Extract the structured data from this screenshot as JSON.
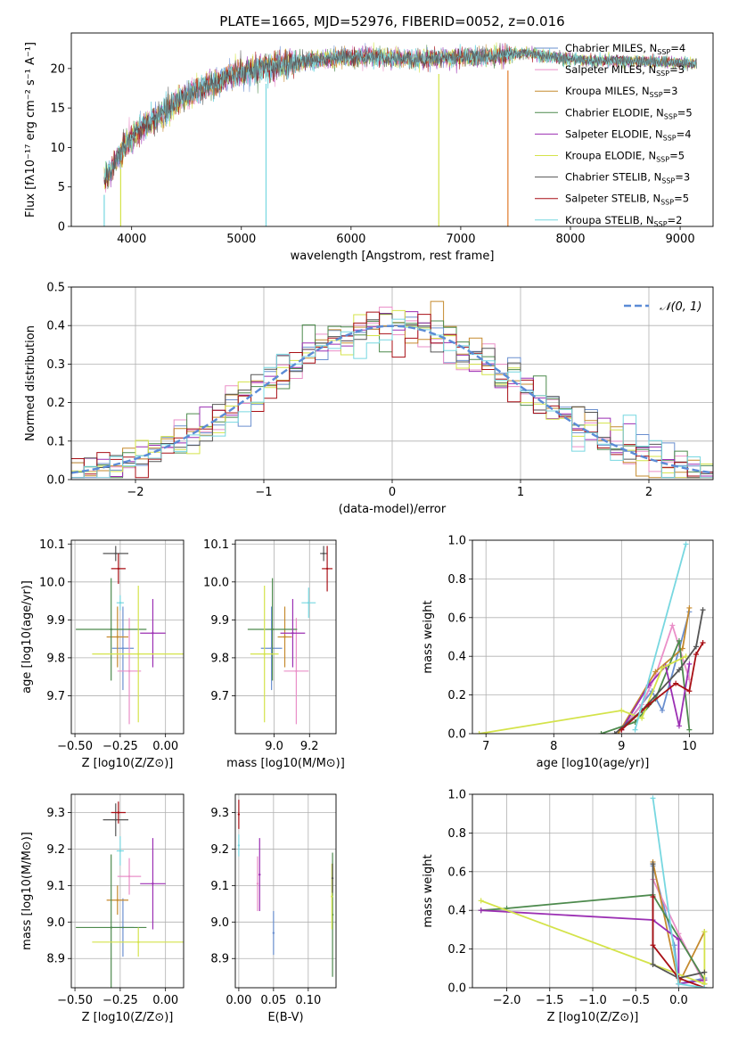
{
  "figure_title": "PLATE=1665, MJD=52976, FIBERID=0052, z=0.016",
  "model_colors": [
    "#6a8fcf",
    "#ea8fc8",
    "#c58a2e",
    "#4d8a4d",
    "#9b2fb3",
    "#d4e34a",
    "#555555",
    "#a80f15",
    "#77d7e0"
  ],
  "chart_data": [
    {
      "id": "spectrum",
      "type": "line",
      "xlabel": "wavelength [Angstrom, rest frame]",
      "ylabel": "Flux [fλ10⁻¹⁷ erg cm⁻² s⁻¹ A⁻¹]",
      "xlim": [
        3450,
        9300
      ],
      "ylim": [
        0,
        24.5
      ],
      "xticks": [
        4000,
        5000,
        6000,
        7000,
        8000,
        9000
      ],
      "yticks": [
        0,
        5,
        10,
        15,
        20
      ],
      "grid": false,
      "legend_placement": "top-right",
      "legend": [
        "Chabrier MILES, N_SSP=4",
        "Salpeter MILES, N_SSP=3",
        "Kroupa MILES, N_SSP=3",
        "Chabrier ELODIE, N_SSP=5",
        "Salpeter ELODIE, N_SSP=4",
        "Kroupa ELODIE, N_SSP=5",
        "Chabrier STELIB, N_SSP=3",
        "Salpeter STELIB, N_SSP=5",
        "Kroupa STELIB, N_SSP=2"
      ],
      "continuum": {
        "x": [
          3750,
          3850,
          3950,
          4050,
          4150,
          4250,
          4350,
          4500,
          4650,
          4800,
          5000,
          5200,
          5400,
          5600,
          5800,
          6000,
          6200,
          6400,
          6600,
          6800,
          7000,
          7200,
          7400,
          7600,
          7800,
          8000,
          8200,
          8400,
          8600,
          8800,
          9000,
          9200
        ],
        "y": [
          6,
          8,
          10.5,
          12,
          13,
          14,
          15,
          16.5,
          17.5,
          18.5,
          19.5,
          20,
          20.5,
          21,
          21.3,
          21.5,
          21.5,
          21.3,
          21.2,
          21.3,
          21.5,
          21.5,
          21.7,
          22,
          21.5,
          21.2,
          21,
          21,
          20.9,
          20.8,
          20.7,
          20.6
        ]
      },
      "dips": [
        {
          "x": 5225,
          "y": 0
        },
        {
          "x": 6800,
          "y": 0
        },
        {
          "x": 7430,
          "y": 0
        },
        {
          "x": 3900,
          "y": 0
        },
        {
          "x": 3750,
          "y": 0
        }
      ]
    },
    {
      "id": "residuals",
      "type": "histogram",
      "xlabel": "(data-model)/error",
      "ylabel": "Normed distribution",
      "xlim": [
        -2.5,
        2.5
      ],
      "ylim": [
        0,
        0.5
      ],
      "xticks": [
        -2,
        -1,
        0,
        1,
        2
      ],
      "yticks": [
        0.0,
        0.1,
        0.2,
        0.3,
        0.4,
        0.5
      ],
      "grid": true,
      "legend_placement": "top-right",
      "legend": [
        "N(0,1)"
      ],
      "bin_width": 0.1
    },
    {
      "id": "age_vs_Z",
      "type": "errorbar",
      "xlabel": "Z [log10(Z/Z⊙)]",
      "ylabel": "age [log10(age/yr)]",
      "xlim": [
        -0.52,
        0.1
      ],
      "ylim": [
        9.6,
        10.11
      ],
      "xticks": [
        -0.5,
        -0.25,
        0.0
      ],
      "yticks": [
        9.7,
        9.8,
        9.9,
        10.0,
        10.1
      ],
      "grid": true,
      "points": [
        {
          "c": 0,
          "x": -0.235,
          "xe": 0.06,
          "y": 9.825,
          "ye": 0.11
        },
        {
          "c": 1,
          "x": -0.2,
          "xe": 0.065,
          "y": 9.765,
          "ye": 0.14
        },
        {
          "c": 2,
          "x": -0.265,
          "xe": 0.06,
          "y": 9.855,
          "ye": 0.08
        },
        {
          "c": 3,
          "x": -0.3,
          "xe": 0.195,
          "y": 9.875,
          "ye": 0.135
        },
        {
          "c": 4,
          "x": -0.07,
          "xe": 0.07,
          "y": 9.865,
          "ye": 0.09
        },
        {
          "c": 5,
          "x": -0.15,
          "xe": 0.255,
          "y": 9.81,
          "ye": 0.18
        },
        {
          "c": 6,
          "x": -0.275,
          "xe": 0.07,
          "y": 10.075,
          "ye": 0.02
        },
        {
          "c": 7,
          "x": -0.26,
          "xe": 0.04,
          "y": 10.035,
          "ye": 0.04
        },
        {
          "c": 8,
          "x": -0.25,
          "xe": 0.02,
          "y": 9.945,
          "ye": 0.02
        }
      ]
    },
    {
      "id": "age_vs_mass",
      "type": "errorbar",
      "xlabel": "mass [log10(M/M⊙)]",
      "ylabel": "",
      "xlim": [
        8.78,
        9.35
      ],
      "ylim": [
        9.6,
        10.11
      ],
      "xticks": [
        9.0,
        9.2
      ],
      "yticks": [
        9.7,
        9.8,
        9.9,
        10.0,
        10.1
      ],
      "grid": true,
      "points": [
        {
          "c": 0,
          "x": 8.985,
          "xe": 0.06,
          "y": 9.825,
          "ye": 0.11
        },
        {
          "c": 1,
          "x": 9.125,
          "xe": 0.07,
          "y": 9.765,
          "ye": 0.14
        },
        {
          "c": 2,
          "x": 9.06,
          "xe": 0.04,
          "y": 9.855,
          "ye": 0.08
        },
        {
          "c": 3,
          "x": 8.99,
          "xe": 0.14,
          "y": 9.875,
          "ye": 0.135
        },
        {
          "c": 4,
          "x": 9.105,
          "xe": 0.07,
          "y": 9.865,
          "ye": 0.09
        },
        {
          "c": 5,
          "x": 8.945,
          "xe": 0.08,
          "y": 9.81,
          "ye": 0.18
        },
        {
          "c": 6,
          "x": 9.28,
          "xe": 0.02,
          "y": 10.075,
          "ye": 0.02
        },
        {
          "c": 7,
          "x": 9.3,
          "xe": 0.03,
          "y": 10.035,
          "ye": 0.06
        },
        {
          "c": 8,
          "x": 9.195,
          "xe": 0.04,
          "y": 9.945,
          "ye": 0.04
        }
      ]
    },
    {
      "id": "weight_vs_age",
      "type": "line",
      "xlabel": "age [log10(age/yr)]",
      "ylabel": "mass weight",
      "xlim": [
        6.8,
        10.35
      ],
      "ylim": [
        0,
        1
      ],
      "xticks": [
        7,
        8,
        9,
        10
      ],
      "yticks": [
        0.0,
        0.2,
        0.4,
        0.6,
        0.8,
        1.0
      ],
      "grid": true,
      "series": [
        {
          "c": 0,
          "x": [
            9.0,
            9.45,
            9.6,
            10.0
          ],
          "y": [
            0.02,
            0.22,
            0.12,
            0.63
          ]
        },
        {
          "c": 1,
          "x": [
            9.0,
            9.3,
            9.5,
            9.75,
            10.0
          ],
          "y": [
            0.02,
            0.15,
            0.3,
            0.56,
            0.28
          ]
        },
        {
          "c": 2,
          "x": [
            8.95,
            9.5,
            9.9,
            10.0
          ],
          "y": [
            0.0,
            0.32,
            0.44,
            0.65
          ]
        },
        {
          "c": 3,
          "x": [
            8.7,
            9.2,
            9.5,
            9.85,
            10.0
          ],
          "y": [
            0.0,
            0.06,
            0.18,
            0.48,
            0.02
          ]
        },
        {
          "c": 4,
          "x": [
            9.0,
            9.4,
            9.65,
            9.85,
            10.0
          ],
          "y": [
            0.02,
            0.25,
            0.35,
            0.04,
            0.36
          ]
        },
        {
          "c": 5,
          "x": [
            6.9,
            9.0,
            9.3,
            9.6,
            9.95
          ],
          "y": [
            0.0,
            0.12,
            0.08,
            0.34,
            0.4
          ]
        },
        {
          "c": 6,
          "x": [
            8.9,
            9.3,
            9.85,
            10.1,
            10.2
          ],
          "y": [
            0.0,
            0.12,
            0.33,
            0.45,
            0.64
          ]
        },
        {
          "c": 7,
          "x": [
            9.0,
            9.4,
            9.8,
            10.0,
            10.1,
            10.2
          ],
          "y": [
            0.02,
            0.15,
            0.26,
            0.22,
            0.41,
            0.47
          ]
        },
        {
          "c": 8,
          "x": [
            9.2,
            9.95
          ],
          "y": [
            0.02,
            0.98
          ]
        }
      ]
    },
    {
      "id": "mass_vs_Z",
      "type": "errorbar",
      "xlabel": "Z [log10(Z/Z⊙)]",
      "ylabel": "mass [log10(M/M⊙)]",
      "xlim": [
        -0.52,
        0.1
      ],
      "ylim": [
        8.82,
        9.35
      ],
      "xticks": [
        -0.5,
        -0.25,
        0.0
      ],
      "yticks": [
        8.9,
        9.0,
        9.1,
        9.2,
        9.3
      ],
      "grid": true,
      "points": [
        {
          "c": 0,
          "x": -0.235,
          "xe": 0.06,
          "y": 8.985,
          "ye": 0.08
        },
        {
          "c": 1,
          "x": -0.2,
          "xe": 0.065,
          "y": 9.125,
          "ye": 0.05
        },
        {
          "c": 2,
          "x": -0.265,
          "xe": 0.06,
          "y": 9.06,
          "ye": 0.04
        },
        {
          "c": 3,
          "x": -0.3,
          "xe": 0.195,
          "y": 8.985,
          "ye": 0.2
        },
        {
          "c": 4,
          "x": -0.07,
          "xe": 0.07,
          "y": 9.105,
          "ye": 0.125
        },
        {
          "c": 5,
          "x": -0.15,
          "xe": 0.255,
          "y": 8.945,
          "ye": 0.04
        },
        {
          "c": 6,
          "x": -0.275,
          "xe": 0.07,
          "y": 9.28,
          "ye": 0.045
        },
        {
          "c": 7,
          "x": -0.26,
          "xe": 0.04,
          "y": 9.3,
          "ye": 0.03
        },
        {
          "c": 8,
          "x": -0.25,
          "xe": 0.02,
          "y": 9.195,
          "ye": 0.04
        }
      ]
    },
    {
      "id": "mass_vs_EBV",
      "type": "errorbar",
      "xlabel": "E(B-V)",
      "ylabel": "",
      "xlim": [
        -0.005,
        0.14
      ],
      "ylim": [
        8.82,
        9.35
      ],
      "xticks": [
        0.0,
        0.05,
        0.1
      ],
      "yticks": [
        8.9,
        9.0,
        9.1,
        9.2,
        9.3
      ],
      "grid": true,
      "points": [
        {
          "c": 0,
          "x": 0.05,
          "xe": 0,
          "y": 8.97,
          "ye": 0.06
        },
        {
          "c": 1,
          "x": 0.027,
          "xe": 0,
          "y": 9.105,
          "ye": 0.075
        },
        {
          "c": 4,
          "x": 0.03,
          "xe": 0,
          "y": 9.13,
          "ye": 0.1
        },
        {
          "c": 3,
          "x": 0.135,
          "xe": 0,
          "y": 9.02,
          "ye": 0.17
        },
        {
          "c": 5,
          "x": 0.134,
          "xe": 0,
          "y": 9.07,
          "ye": 0.09
        },
        {
          "c": 7,
          "x": 0.0,
          "xe": 0,
          "y": 9.295,
          "ye": 0.04
        },
        {
          "c": 8,
          "x": 0.0,
          "xe": 0,
          "y": 9.21,
          "ye": 0.03
        },
        {
          "c": 6,
          "x": 0.135,
          "xe": 0,
          "y": 9.12,
          "ye": 0.04
        }
      ]
    },
    {
      "id": "weight_vs_Z",
      "type": "line",
      "xlabel": "Z [log10(Z/Z⊙)]",
      "ylabel": "mass weight",
      "xlim": [
        -2.4,
        0.4
      ],
      "ylim": [
        0,
        1
      ],
      "xticks": [
        -2.0,
        -1.5,
        -1.0,
        -0.5,
        0.0
      ],
      "yticks": [
        0.0,
        0.2,
        0.4,
        0.6,
        0.8,
        1.0
      ],
      "grid": true,
      "series": [
        {
          "c": 0,
          "x": [
            -0.3,
            -0.05,
            0.0,
            0.3
          ],
          "y": [
            0.63,
            0.22,
            0.02,
            0.05
          ]
        },
        {
          "c": 1,
          "x": [
            -0.3,
            0.0,
            0.3
          ],
          "y": [
            0.56,
            0.28,
            0.02
          ]
        },
        {
          "c": 2,
          "x": [
            -0.3,
            0.0,
            0.3
          ],
          "y": [
            0.65,
            0.02,
            0.29
          ]
        },
        {
          "c": 3,
          "x": [
            -2.3,
            -2.0,
            -0.3,
            0.3,
            0.3
          ],
          "y": [
            0.4,
            0.41,
            0.48,
            0.04,
            0.02
          ]
        },
        {
          "c": 4,
          "x": [
            -2.3,
            -0.3,
            0.0,
            0.0,
            0.3
          ],
          "y": [
            0.4,
            0.35,
            0.25,
            0.02,
            0.04
          ]
        },
        {
          "c": 5,
          "x": [
            -2.3,
            -0.3,
            0.3,
            0.3
          ],
          "y": [
            0.45,
            0.12,
            0.02,
            0.29
          ]
        },
        {
          "c": 6,
          "x": [
            -0.3,
            -0.3,
            0.0,
            0.3
          ],
          "y": [
            0.64,
            0.12,
            0.05,
            0.08
          ]
        },
        {
          "c": 7,
          "x": [
            -0.3,
            -0.3,
            0.0,
            0.3
          ],
          "y": [
            0.47,
            0.22,
            0.05,
            0.0
          ]
        },
        {
          "c": 8,
          "x": [
            -0.3,
            0.0,
            0.3
          ],
          "y": [
            0.98,
            0.02,
            0.0
          ]
        }
      ]
    }
  ]
}
